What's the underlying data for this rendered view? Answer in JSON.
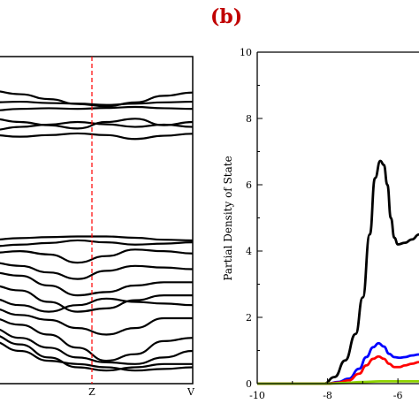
{
  "panel_label": "(b)",
  "colors": {
    "label": "#c00000",
    "axis": "#000000",
    "divider": "#ff0000"
  },
  "chart_data": [
    {
      "type": "line",
      "panel": "a",
      "title": "",
      "xlabel": "",
      "ylabel": "",
      "k_points": [
        {
          "label": "Z",
          "pos": 0.5
        },
        {
          "label": "V",
          "pos": 1.0
        }
      ],
      "divider_at": "Z",
      "ylim": [
        0,
        1
      ],
      "series": [
        {
          "values": [
            0.895,
            0.885,
            0.87,
            0.855,
            0.848,
            0.86,
            0.88,
            0.89
          ]
        },
        {
          "values": [
            0.86,
            0.862,
            0.858,
            0.856,
            0.852,
            0.856,
            0.86,
            0.862
          ]
        },
        {
          "values": [
            0.835,
            0.84,
            0.842,
            0.84,
            0.843,
            0.846,
            0.842,
            0.84
          ]
        },
        {
          "values": [
            0.81,
            0.8,
            0.79,
            0.78,
            0.8,
            0.81,
            0.79,
            0.8
          ]
        },
        {
          "values": [
            0.775,
            0.785,
            0.792,
            0.8,
            0.793,
            0.785,
            0.792,
            0.785
          ]
        },
        {
          "values": [
            0.76,
            0.755,
            0.76,
            0.765,
            0.76,
            0.748,
            0.758,
            0.764
          ]
        },
        {
          "values": [
            0.44,
            0.445,
            0.448,
            0.45,
            0.45,
            0.446,
            0.44,
            0.438
          ]
        },
        {
          "values": [
            0.42,
            0.425,
            0.43,
            0.438,
            0.432,
            0.425,
            0.428,
            0.432
          ]
        },
        {
          "values": [
            0.4,
            0.405,
            0.395,
            0.37,
            0.39,
            0.41,
            0.405,
            0.398
          ]
        },
        {
          "values": [
            0.37,
            0.36,
            0.34,
            0.32,
            0.345,
            0.36,
            0.355,
            0.35
          ]
        },
        {
          "values": [
            0.34,
            0.33,
            0.3,
            0.27,
            0.28,
            0.3,
            0.31,
            0.31
          ]
        },
        {
          "values": [
            0.3,
            0.285,
            0.25,
            0.22,
            0.23,
            0.255,
            0.27,
            0.27
          ]
        },
        {
          "values": [
            0.26,
            0.24,
            0.22,
            0.24,
            0.26,
            0.25,
            0.245,
            0.24
          ]
        },
        {
          "values": [
            0.23,
            0.21,
            0.195,
            0.17,
            0.15,
            0.17,
            0.2,
            0.2
          ]
        },
        {
          "values": [
            0.2,
            0.18,
            0.15,
            0.11,
            0.07,
            0.09,
            0.13,
            0.14
          ]
        },
        {
          "values": [
            0.17,
            0.14,
            0.11,
            0.08,
            0.065,
            0.06,
            0.08,
            0.1
          ]
        },
        {
          "values": [
            0.15,
            0.12,
            0.08,
            0.05,
            0.04,
            0.05,
            0.06,
            0.06
          ]
        },
        {
          "values": [
            0.13,
            0.1,
            0.07,
            0.06,
            0.05,
            0.04,
            0.045,
            0.05
          ]
        }
      ]
    },
    {
      "type": "line",
      "panel": "b",
      "title": "",
      "xlabel": "",
      "ylabel": "Partial Density of State",
      "xlim": [
        -10,
        -5.4
      ],
      "ylim": [
        0,
        10
      ],
      "xticks": [
        -10,
        -8,
        -6
      ],
      "yticks": [
        0,
        2,
        4,
        6,
        8,
        10
      ],
      "series": [
        {
          "color": "#000000",
          "x": [
            -10,
            -8.5,
            -8.1,
            -7.8,
            -7.5,
            -7.2,
            -7.0,
            -6.8,
            -6.65,
            -6.5,
            -6.4,
            -6.3,
            -6.2,
            -6.1,
            -6.0,
            -5.8,
            -5.6,
            -5.4
          ],
          "y": [
            0,
            0,
            0,
            0.2,
            0.7,
            1.5,
            2.6,
            4.5,
            6.2,
            6.72,
            6.6,
            6.0,
            5.0,
            4.4,
            4.2,
            4.25,
            4.35,
            4.5
          ]
        },
        {
          "color": "#0000ff",
          "x": [
            -10,
            -8.0,
            -7.7,
            -7.4,
            -7.1,
            -6.9,
            -6.7,
            -6.55,
            -6.4,
            -6.25,
            -6.1,
            -5.95,
            -5.8,
            -5.6,
            -5.4
          ],
          "y": [
            0,
            0,
            0.05,
            0.15,
            0.45,
            0.8,
            1.1,
            1.22,
            1.12,
            0.9,
            0.8,
            0.78,
            0.8,
            0.85,
            0.88
          ]
        },
        {
          "color": "#ff0000",
          "x": [
            -10,
            -8.0,
            -7.7,
            -7.4,
            -7.1,
            -6.9,
            -6.7,
            -6.55,
            -6.4,
            -6.25,
            -6.1,
            -5.95,
            -5.8,
            -5.6,
            -5.4
          ],
          "y": [
            0,
            0,
            0.03,
            0.1,
            0.3,
            0.55,
            0.75,
            0.82,
            0.75,
            0.6,
            0.5,
            0.5,
            0.55,
            0.6,
            0.65
          ]
        },
        {
          "color": "#8fd400",
          "x": [
            -10,
            -8.0,
            -7.5,
            -7.0,
            -6.5,
            -6.0,
            -5.4
          ],
          "y": [
            0,
            0,
            0.02,
            0.05,
            0.07,
            0.07,
            0.07
          ]
        }
      ]
    }
  ]
}
